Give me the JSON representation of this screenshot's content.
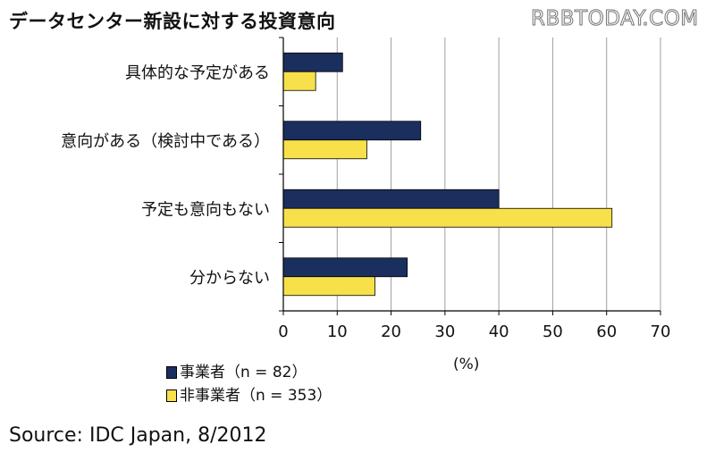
{
  "title": "データセンター新設に対する投資意向",
  "watermark": "RBBTODAY.COM",
  "source": "Source: IDC Japan, 8/2012",
  "unit_label": "(%)",
  "colors": {
    "series1": "#1b2f5e",
    "series2": "#f7e04a",
    "grid": "#a0a0a0"
  },
  "chart_data": {
    "type": "bar",
    "orientation": "horizontal",
    "categories": [
      "具体的な予定がある",
      "意向がある（検討中である）",
      "予定も意向もない",
      "分からない"
    ],
    "series": [
      {
        "name": "事業者（n = 82）",
        "values": [
          11,
          25.5,
          40,
          23
        ]
      },
      {
        "name": "非事業者（n = 353）",
        "values": [
          6,
          15.5,
          61,
          17
        ]
      }
    ],
    "xlim": [
      0,
      70
    ],
    "xticks": [
      0,
      10,
      20,
      30,
      40,
      50,
      60,
      70
    ],
    "xlabel": "(%)",
    "grid": true,
    "legend_position": "bottom-left"
  }
}
